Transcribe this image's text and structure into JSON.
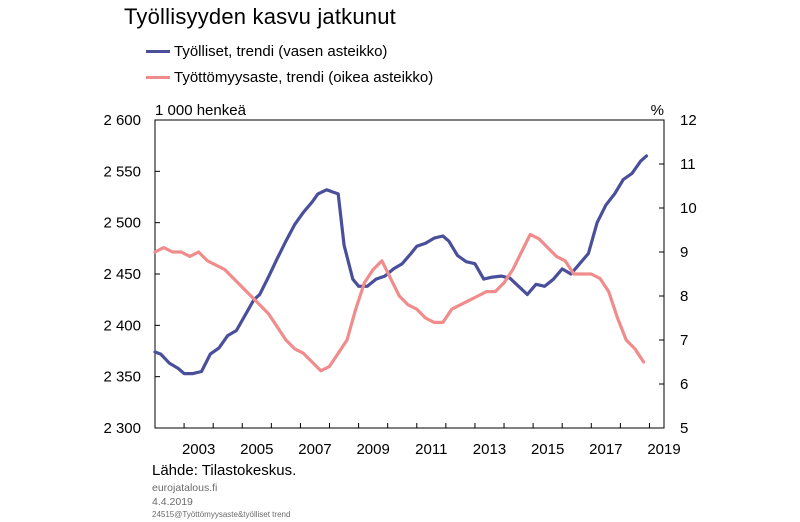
{
  "title": "Työllisyyden kasvu jatkunut",
  "legend": [
    {
      "label": "Työlliset, trendi (vasen asteikko)",
      "color": "#4a4f9c"
    },
    {
      "label": "Työttömyysaste, trendi (oikea asteikko)",
      "color": "#f08c8c"
    }
  ],
  "footer": {
    "source": "Lähde: Tilastokeskus.",
    "site": "eurojatalous.fi",
    "date": "4.4.2019",
    "code": "24515@Työttömyysaste&työlliset trend"
  },
  "chart_data": {
    "type": "line",
    "left_axis_label": "1 000 henkeä",
    "right_axis_label": "%",
    "left_ylim": [
      2300,
      2600
    ],
    "right_ylim": [
      5,
      12
    ],
    "left_ticks": [
      2300,
      2350,
      2400,
      2450,
      2500,
      2550,
      2600
    ],
    "left_tick_labels": [
      "2 300",
      "2 350",
      "2 400",
      "2 450",
      "2 500",
      "2 550",
      "2 600"
    ],
    "right_ticks": [
      5,
      6,
      7,
      8,
      9,
      10,
      11,
      12
    ],
    "right_tick_labels": [
      "5",
      "6",
      "7",
      "8",
      "9",
      "10",
      "11",
      "12"
    ],
    "xlim": [
      2002.0,
      2019.5
    ],
    "x_ticks": [
      2003,
      2005,
      2007,
      2009,
      2011,
      2013,
      2015,
      2017,
      2019
    ],
    "x_tick_labels": [
      "2003",
      "2005",
      "2007",
      "2009",
      "2011",
      "2013",
      "2015",
      "2017",
      "2019"
    ],
    "x_minor_ticks": [
      2002,
      2003,
      2004,
      2005,
      2006,
      2007,
      2008,
      2009,
      2010,
      2011,
      2012,
      2013,
      2014,
      2015,
      2016,
      2017,
      2018,
      2019
    ],
    "grid": false,
    "series": [
      {
        "name": "Työlliset, trendi (vasen asteikko)",
        "axis": "left",
        "color": "#4a4f9c",
        "x": [
          2002.0,
          2002.2,
          2002.5,
          2002.8,
          2003.0,
          2003.3,
          2003.6,
          2003.9,
          2004.2,
          2004.5,
          2004.8,
          2005.1,
          2005.4,
          2005.6,
          2005.9,
          2006.2,
          2006.5,
          2006.8,
          2007.1,
          2007.4,
          2007.6,
          2007.9,
          2008.1,
          2008.3,
          2008.5,
          2008.8,
          2009.0,
          2009.3,
          2009.6,
          2009.9,
          2010.2,
          2010.5,
          2010.8,
          2011.0,
          2011.3,
          2011.6,
          2011.9,
          2012.1,
          2012.4,
          2012.7,
          2013.0,
          2013.3,
          2013.6,
          2013.9,
          2014.2,
          2014.5,
          2014.8,
          2015.1,
          2015.4,
          2015.7,
          2016.0,
          2016.3,
          2016.6,
          2016.9,
          2017.2,
          2017.5,
          2017.8,
          2018.1,
          2018.4,
          2018.7,
          2018.9
        ],
        "values": [
          2374,
          2372,
          2363,
          2358,
          2353,
          2353,
          2355,
          2372,
          2378,
          2390,
          2395,
          2410,
          2425,
          2430,
          2447,
          2465,
          2482,
          2498,
          2510,
          2520,
          2528,
          2532,
          2530,
          2528,
          2478,
          2445,
          2438,
          2438,
          2445,
          2448,
          2455,
          2460,
          2470,
          2477,
          2480,
          2485,
          2487,
          2482,
          2468,
          2462,
          2460,
          2445,
          2447,
          2448,
          2446,
          2438,
          2430,
          2440,
          2438,
          2445,
          2455,
          2450,
          2460,
          2470,
          2500,
          2517,
          2528,
          2542,
          2548,
          2560,
          2565
        ]
      },
      {
        "name": "Työttömyysaste, trendi (oikea asteikko)",
        "axis": "right",
        "color": "#f08c8c",
        "x": [
          2002.0,
          2002.3,
          2002.6,
          2002.9,
          2003.2,
          2003.5,
          2003.8,
          2004.1,
          2004.4,
          2004.7,
          2005.0,
          2005.3,
          2005.6,
          2005.9,
          2006.2,
          2006.5,
          2006.8,
          2007.1,
          2007.4,
          2007.7,
          2008.0,
          2008.3,
          2008.6,
          2008.9,
          2009.2,
          2009.5,
          2009.8,
          2010.1,
          2010.4,
          2010.7,
          2011.0,
          2011.3,
          2011.6,
          2011.9,
          2012.2,
          2012.5,
          2012.8,
          2013.1,
          2013.4,
          2013.7,
          2014.0,
          2014.3,
          2014.6,
          2014.9,
          2015.2,
          2015.5,
          2015.8,
          2016.1,
          2016.4,
          2016.7,
          2017.0,
          2017.3,
          2017.6,
          2017.9,
          2018.2,
          2018.5,
          2018.8
        ],
        "values": [
          9.0,
          9.1,
          9.0,
          9.0,
          8.9,
          9.0,
          8.8,
          8.7,
          8.6,
          8.4,
          8.2,
          8.0,
          7.8,
          7.6,
          7.3,
          7.0,
          6.8,
          6.7,
          6.5,
          6.3,
          6.4,
          6.7,
          7.0,
          7.7,
          8.3,
          8.6,
          8.8,
          8.4,
          8.0,
          7.8,
          7.7,
          7.5,
          7.4,
          7.4,
          7.7,
          7.8,
          7.9,
          8.0,
          8.1,
          8.1,
          8.3,
          8.6,
          9.0,
          9.4,
          9.3,
          9.1,
          8.9,
          8.8,
          8.5,
          8.5,
          8.5,
          8.4,
          8.1,
          7.5,
          7.0,
          6.8,
          6.5
        ]
      }
    ]
  }
}
